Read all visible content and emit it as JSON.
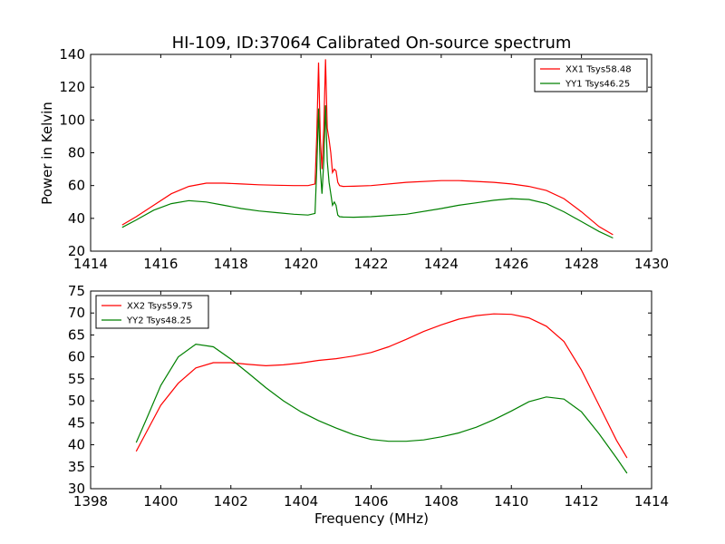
{
  "figure": {
    "title": "HI-109, ID:37064 Calibrated On-source spectrum",
    "ylabel": "Power in Kelvin",
    "xlabel": "Frequency (MHz)"
  },
  "chart_data": [
    {
      "type": "line",
      "title": "HI-109, ID:37064 Calibrated On-source spectrum",
      "xlabel": "",
      "ylabel": "Power in Kelvin",
      "xlim": [
        1414,
        1430
      ],
      "ylim": [
        20,
        140
      ],
      "xticks": [
        1414,
        1416,
        1418,
        1420,
        1422,
        1424,
        1426,
        1428,
        1430
      ],
      "yticks": [
        20,
        40,
        60,
        80,
        100,
        120,
        140
      ],
      "grid": false,
      "legend_position": "top-right",
      "series": [
        {
          "name": "XX1 Tsys58.48",
          "color": "#ff0000",
          "x": [
            1414.9,
            1415.3,
            1415.8,
            1416.3,
            1416.8,
            1417.3,
            1417.8,
            1418.3,
            1418.8,
            1419.3,
            1419.8,
            1420.2,
            1420.4,
            1420.45,
            1420.5,
            1420.55,
            1420.6,
            1420.65,
            1420.7,
            1420.75,
            1420.8,
            1420.85,
            1420.9,
            1420.95,
            1421.0,
            1421.05,
            1421.1,
            1421.2,
            1421.5,
            1422.0,
            1423.0,
            1424.0,
            1424.5,
            1425.0,
            1425.5,
            1426.0,
            1426.5,
            1427.0,
            1427.5,
            1428.0,
            1428.5,
            1428.9
          ],
          "y": [
            36,
            41,
            48,
            55,
            59.5,
            61.5,
            61.5,
            61,
            60.5,
            60.2,
            60,
            60,
            61,
            90,
            135,
            90,
            70,
            95,
            137,
            95,
            88,
            80,
            68,
            70,
            69,
            62,
            60,
            59.5,
            59.6,
            60,
            62,
            63,
            63,
            62.5,
            62,
            61,
            59.5,
            57,
            52,
            44,
            35,
            30
          ]
        },
        {
          "name": "YY1 Tsys46.25",
          "color": "#008000",
          "x": [
            1414.9,
            1415.3,
            1415.8,
            1416.3,
            1416.8,
            1417.3,
            1417.8,
            1418.3,
            1418.8,
            1419.3,
            1419.8,
            1420.2,
            1420.4,
            1420.45,
            1420.5,
            1420.55,
            1420.6,
            1420.65,
            1420.7,
            1420.75,
            1420.8,
            1420.85,
            1420.9,
            1420.95,
            1421.0,
            1421.05,
            1421.1,
            1421.2,
            1421.5,
            1422.0,
            1423.0,
            1424.0,
            1424.5,
            1425.0,
            1425.5,
            1426.0,
            1426.5,
            1427.0,
            1427.5,
            1428.0,
            1428.5,
            1428.9
          ],
          "y": [
            34.5,
            39,
            45,
            49,
            50.8,
            50,
            48,
            46,
            44.5,
            43.5,
            42.5,
            42,
            43,
            70,
            107,
            70,
            55,
            75,
            109,
            75,
            62,
            55,
            48,
            50,
            48,
            42,
            41,
            40.8,
            40.7,
            41,
            42.5,
            46,
            48,
            49.5,
            51,
            52,
            51.5,
            49,
            44,
            38,
            32,
            28
          ]
        }
      ]
    },
    {
      "type": "line",
      "title": "",
      "xlabel": "Frequency (MHz)",
      "ylabel": "",
      "xlim": [
        1398,
        1414
      ],
      "ylim": [
        30,
        75
      ],
      "xticks": [
        1398,
        1400,
        1402,
        1404,
        1406,
        1408,
        1410,
        1412,
        1414
      ],
      "yticks": [
        30,
        35,
        40,
        45,
        50,
        55,
        60,
        65,
        70,
        75
      ],
      "grid": false,
      "legend_position": "top-left",
      "series": [
        {
          "name": "XX2 Tsys59.75",
          "color": "#ff0000",
          "x": [
            1399.3,
            1399.6,
            1400.0,
            1400.5,
            1401.0,
            1401.5,
            1402.0,
            1402.5,
            1403.0,
            1403.5,
            1404.0,
            1404.5,
            1405.0,
            1405.5,
            1406.0,
            1406.5,
            1407.0,
            1407.5,
            1408.0,
            1408.5,
            1409.0,
            1409.5,
            1410.0,
            1410.5,
            1411.0,
            1411.5,
            1412.0,
            1412.5,
            1413.0,
            1413.3
          ],
          "y": [
            38.5,
            43,
            49,
            54,
            57.5,
            58.7,
            58.7,
            58.3,
            58,
            58.2,
            58.6,
            59.2,
            59.6,
            60.2,
            61,
            62.3,
            64,
            65.8,
            67.3,
            68.6,
            69.4,
            69.8,
            69.7,
            68.9,
            67,
            63.5,
            57,
            49,
            41,
            37
          ]
        },
        {
          "name": "YY2 Tsys48.25",
          "color": "#008000",
          "x": [
            1399.3,
            1399.6,
            1400.0,
            1400.5,
            1401.0,
            1401.5,
            1402.0,
            1402.5,
            1403.0,
            1403.5,
            1404.0,
            1404.5,
            1405.0,
            1405.5,
            1406.0,
            1406.5,
            1407.0,
            1407.5,
            1408.0,
            1408.5,
            1409.0,
            1409.5,
            1410.0,
            1410.5,
            1411.0,
            1411.5,
            1412.0,
            1412.5,
            1413.0,
            1413.3
          ],
          "y": [
            40.5,
            46,
            53.5,
            60,
            62.9,
            62.3,
            59.5,
            56.3,
            53,
            50,
            47.5,
            45.5,
            43.8,
            42.3,
            41.2,
            40.8,
            40.8,
            41.1,
            41.8,
            42.7,
            44,
            45.7,
            47.7,
            49.8,
            50.9,
            50.4,
            47.5,
            42.5,
            37,
            33.5
          ]
        }
      ]
    }
  ]
}
